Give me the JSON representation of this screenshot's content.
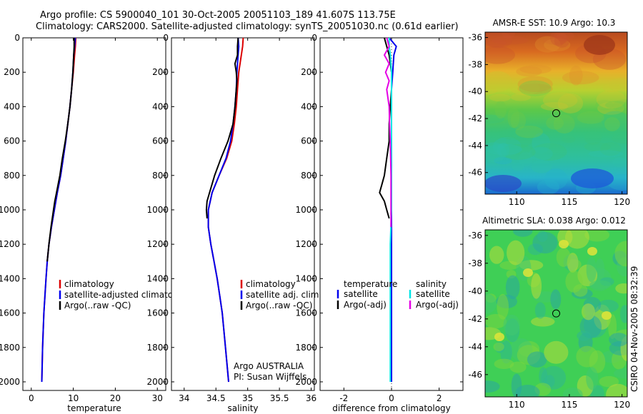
{
  "title": {
    "line1": "Argo profile: CS 5900040_101 30-Oct-2005 20051103_189 41.607S 113.75E",
    "line2": "Climatology: CARS2000. Satellite-adjusted climatology: synTS_20051030.nc (0.61d earlier)"
  },
  "credit": {
    "program": "Argo AUSTRALIA",
    "pi": "PI: Susan Wijffels"
  },
  "timestamp": "CSIRO 04-Nov-2005 08:32:39",
  "colors": {
    "climatology": "#dd0000",
    "satellite": "#0000ee",
    "argo": "#000000",
    "salinity_satellite": "#00e5e5",
    "salinity_argo": "#e500e5"
  },
  "chart_data": [
    {
      "type": "line",
      "name": "temperature-profile",
      "xlabel": "temperature",
      "ylabel": "",
      "xlim": [
        -2,
        32
      ],
      "ylim": [
        2050,
        0
      ],
      "xticks": [
        0,
        10,
        20,
        30
      ],
      "yticks": [
        0,
        200,
        400,
        600,
        800,
        1000,
        1200,
        1400,
        1600,
        1800,
        2000
      ],
      "legend": [
        "climatology",
        "satellite-adjusted climatology",
        "Argo(..raw -QC)"
      ],
      "series": [
        {
          "name": "climatology",
          "color": "climatology",
          "depth": [
            0,
            50,
            100,
            200,
            300,
            400,
            500,
            600,
            700,
            800,
            900,
            1000,
            1100,
            1200,
            1300,
            1400,
            1600,
            1800,
            2000
          ],
          "values": [
            10.6,
            10.5,
            10.3,
            10.0,
            9.6,
            9.2,
            8.7,
            8.2,
            7.6,
            7.0,
            6.2,
            5.5,
            4.8,
            4.2,
            3.8,
            3.5,
            3.0,
            2.7,
            2.5
          ]
        },
        {
          "name": "satellite-adjusted climatology",
          "color": "satellite",
          "depth": [
            0,
            50,
            100,
            200,
            300,
            400,
            500,
            600,
            700,
            800,
            900,
            1000,
            1100,
            1200,
            1300,
            1400,
            1600,
            1800,
            2000
          ],
          "values": [
            10.5,
            10.3,
            10.1,
            9.9,
            9.6,
            9.2,
            8.7,
            8.2,
            7.6,
            7.0,
            6.2,
            5.5,
            4.8,
            4.2,
            3.8,
            3.5,
            3.0,
            2.7,
            2.5
          ]
        },
        {
          "name": "Argo(..raw -QC)",
          "color": "argo",
          "depth": [
            0,
            50,
            100,
            200,
            300,
            400,
            500,
            600,
            700,
            800,
            900,
            950,
            1000,
            1100,
            1200,
            1300
          ],
          "values": [
            10.2,
            10.2,
            10.1,
            9.9,
            9.6,
            9.2,
            8.7,
            8.1,
            7.4,
            6.8,
            6.0,
            5.6,
            5.3,
            4.7,
            4.2,
            3.8
          ]
        }
      ]
    },
    {
      "type": "line",
      "name": "salinity-profile",
      "xlabel": "salinity",
      "ylabel": "",
      "xlim": [
        33.8,
        36.05
      ],
      "ylim": [
        2050,
        0
      ],
      "xticks": [
        34,
        34.5,
        35,
        35.5,
        36
      ],
      "xtick_labels": [
        "34",
        "34.5",
        "35",
        "35.5",
        "36"
      ],
      "yticks": [
        0,
        200,
        400,
        600,
        800,
        1000,
        1200,
        1400,
        1600,
        1800,
        2000
      ],
      "legend": [
        "climatology",
        "satellite adj. clim.",
        "Argo(..raw -QC)"
      ],
      "series": [
        {
          "name": "climatology",
          "color": "climatology",
          "depth": [
            0,
            50,
            100,
            150,
            200,
            300,
            400,
            500,
            600,
            700,
            800,
            900,
            1000,
            1100,
            1200,
            1300,
            1400,
            1500,
            1600,
            1800,
            2000
          ],
          "values": [
            34.93,
            34.92,
            34.9,
            34.88,
            34.86,
            34.84,
            34.82,
            34.79,
            34.75,
            34.67,
            34.55,
            34.44,
            34.38,
            34.38,
            34.42,
            34.47,
            34.52,
            34.56,
            34.6,
            34.65,
            34.7
          ]
        },
        {
          "name": "satellite adj. clim.",
          "color": "satellite",
          "depth": [
            0,
            50,
            100,
            150,
            200,
            300,
            400,
            500,
            600,
            700,
            800,
            900,
            1000,
            1100,
            1200,
            1300,
            1400,
            1500,
            1600,
            1800,
            2000
          ],
          "values": [
            34.85,
            34.86,
            34.85,
            34.84,
            34.83,
            34.82,
            34.8,
            34.77,
            34.73,
            34.66,
            34.55,
            34.44,
            34.38,
            34.38,
            34.42,
            34.47,
            34.52,
            34.56,
            34.6,
            34.65,
            34.7
          ]
        },
        {
          "name": "Argo(..raw -QC)",
          "color": "argo",
          "depth": [
            0,
            50,
            100,
            150,
            200,
            250,
            300,
            400,
            500,
            600,
            700,
            800,
            900,
            950,
            1000,
            1050
          ],
          "values": [
            34.85,
            34.84,
            34.84,
            34.8,
            34.82,
            34.83,
            34.82,
            34.8,
            34.77,
            34.69,
            34.58,
            34.48,
            34.4,
            34.36,
            34.35,
            34.36
          ]
        }
      ]
    },
    {
      "type": "line",
      "name": "difference-profile",
      "xlabel": "difference from climatology",
      "ylabel": "",
      "xlim": [
        -3,
        3
      ],
      "ylim": [
        2050,
        0
      ],
      "xticks": [
        -2,
        0,
        2
      ],
      "yticks": [
        0,
        200,
        400,
        600,
        800,
        1000,
        1200,
        1400,
        1600,
        1800,
        2000
      ],
      "legend_left_title": "temperature",
      "legend_right_title": "salinity",
      "legend": [
        "satellite",
        "Argo(-adj)",
        "satellite",
        "Argo(-adj)"
      ],
      "series": [
        {
          "name": "temperature satellite",
          "color": "satellite",
          "depth": [
            0,
            50,
            100,
            200,
            300,
            400,
            600,
            800,
            1000,
            1200,
            1400,
            1600,
            1800,
            2000
          ],
          "values": [
            -0.1,
            0.2,
            0.1,
            0.05,
            0.0,
            0.0,
            0.0,
            0.0,
            0.0,
            0.0,
            0.0,
            0.0,
            0.0,
            0.0
          ]
        },
        {
          "name": "temperature Argo(-adj)",
          "color": "argo",
          "depth": [
            0,
            50,
            100,
            200,
            300,
            400,
            500,
            600,
            700,
            800,
            850,
            900,
            950,
            1000,
            1050
          ],
          "values": [
            -0.3,
            -0.2,
            -0.1,
            0.0,
            0.0,
            -0.05,
            -0.1,
            -0.1,
            -0.2,
            -0.3,
            -0.4,
            -0.5,
            -0.3,
            -0.2,
            -0.1
          ]
        },
        {
          "name": "salinity satellite",
          "color": "salinity_satellite",
          "depth": [
            0,
            50,
            100,
            200,
            400,
            600,
            800,
            1000,
            1200,
            1400,
            1600,
            1800,
            2000
          ],
          "values": [
            -0.1,
            -0.1,
            -0.05,
            0.0,
            0.0,
            0.0,
            0.0,
            0.0,
            -0.05,
            -0.05,
            -0.05,
            -0.05,
            -0.05
          ]
        },
        {
          "name": "salinity Argo(-adj)",
          "color": "salinity_argo",
          "depth": [
            0,
            50,
            100,
            150,
            200,
            250,
            300,
            350,
            400,
            500,
            600,
            800,
            1000,
            1100
          ],
          "values": [
            -0.2,
            -0.1,
            -0.3,
            -0.1,
            -0.25,
            -0.1,
            -0.2,
            -0.15,
            -0.1,
            -0.08,
            -0.05,
            -0.02,
            -0.02,
            -0.02
          ]
        }
      ]
    },
    {
      "type": "heatmap",
      "name": "sst-map",
      "title": "AMSR-E SST: 10.9 Argo: 10.3",
      "xlim": [
        107,
        120.5
      ],
      "ylim": [
        -47.6,
        -35.6
      ],
      "xticks": [
        110,
        115,
        120
      ],
      "yticks": [
        -36,
        -38,
        -40,
        -42,
        -44,
        -46
      ],
      "marker": {
        "lon": 113.75,
        "lat": -41.607
      }
    },
    {
      "type": "heatmap",
      "name": "sla-map",
      "title": "Altimetric SLA: 0.038 Argo: 0.012",
      "xlim": [
        107,
        120.5
      ],
      "ylim": [
        -47.6,
        -35.6
      ],
      "xticks": [
        110,
        115,
        120
      ],
      "yticks": [
        -36,
        -38,
        -40,
        -42,
        -44,
        -46
      ],
      "marker": {
        "lon": 113.75,
        "lat": -41.607
      }
    }
  ]
}
